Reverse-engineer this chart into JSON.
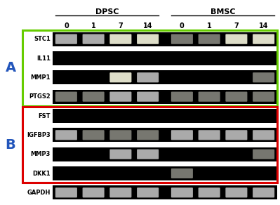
{
  "title_dpsc": "DPSC",
  "title_bmsc": "BMSC",
  "time_points": [
    "0",
    "1",
    "7",
    "14"
  ],
  "group_a_genes": [
    "STC1",
    "IL11",
    "MMP1",
    "PTGS2"
  ],
  "group_b_genes": [
    "FST",
    "IGFBP3",
    "MMP3",
    "DKK1"
  ],
  "gapdh_label": "GAPDH",
  "label_a": "A",
  "label_b": "B",
  "band_color_bright": "#ddddc8",
  "band_color_mid": "#aaaaaa",
  "band_color_dim": "#777770",
  "box_a_color": "#66cc00",
  "box_b_color": "#dd0000",
  "group_label_color": "#2255bb",
  "bands": {
    "STC1": [
      2,
      2,
      3,
      3,
      1,
      1,
      3,
      3
    ],
    "IL11": [
      0,
      0,
      0,
      0,
      0,
      0,
      0,
      0
    ],
    "MMP1": [
      0,
      0,
      3,
      2,
      0,
      0,
      0,
      1
    ],
    "PTGS2": [
      1,
      1,
      2,
      2,
      1,
      1,
      1,
      1
    ],
    "FST": [
      0,
      0,
      0,
      0,
      0,
      0,
      0,
      0
    ],
    "IGFBP3": [
      2,
      1,
      1,
      1,
      2,
      2,
      2,
      2
    ],
    "MMP3": [
      0,
      0,
      2,
      2,
      0,
      0,
      0,
      1
    ],
    "DKK1": [
      0,
      0,
      0,
      0,
      1,
      0,
      0,
      0
    ],
    "GAPDH": [
      2,
      2,
      2,
      2,
      2,
      2,
      2,
      2
    ]
  },
  "fig_width": 3.99,
  "fig_height": 2.92,
  "dpi": 100
}
